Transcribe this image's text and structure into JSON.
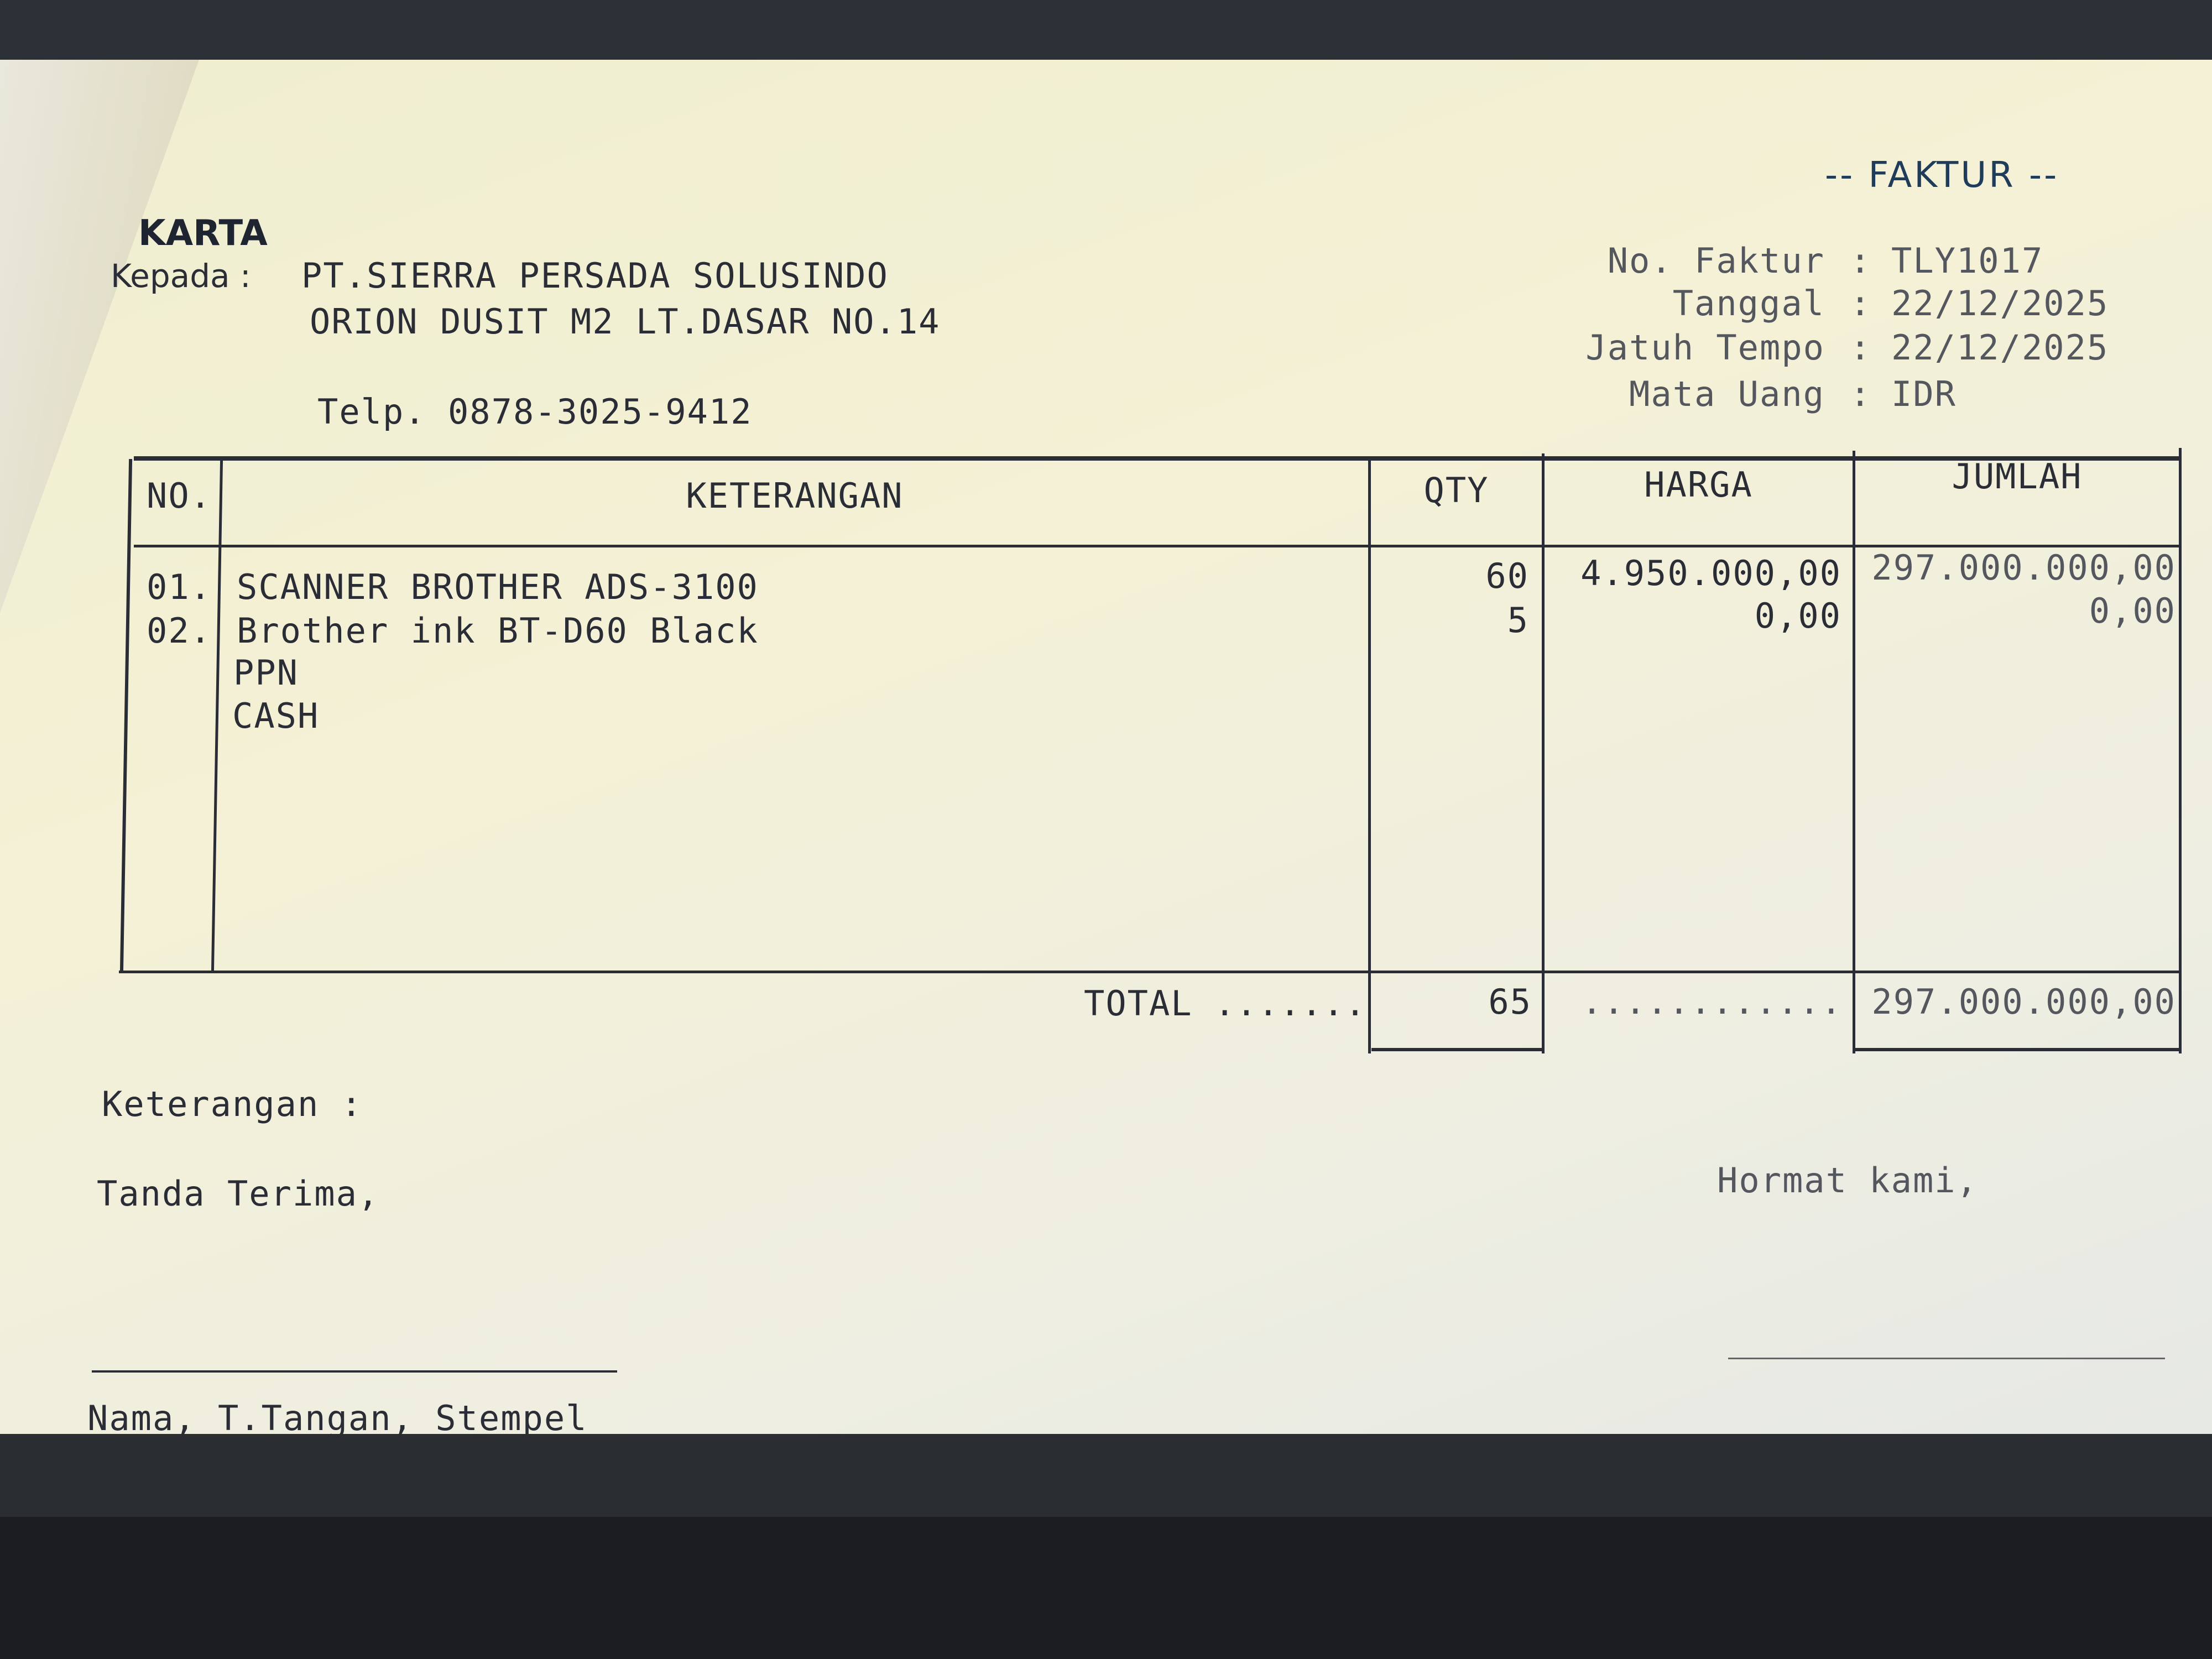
{
  "header": {
    "title": "-- FAKTUR --",
    "company_partial": "KARTA",
    "to_label": "Kepada :",
    "customer_name": "PT.SIERRA PERSADA SOLUSINDO",
    "customer_address": "ORION DUSIT M2 LT.DASAR NO.14",
    "customer_phone": "Telp. 0878-3025-9412"
  },
  "meta": [
    {
      "label": "No. Faktur",
      "value": "TLY1017"
    },
    {
      "label": "Tanggal",
      "value": "22/12/2025"
    },
    {
      "label": "Jatuh Tempo",
      "value": "22/12/2025"
    },
    {
      "label": "Mata Uang",
      "value": "IDR"
    }
  ],
  "table": {
    "columns": [
      "NO.",
      "KETERANGAN",
      "QTY",
      "HARGA",
      "JUMLAH"
    ],
    "rows": [
      {
        "no": "01.",
        "desc": "SCANNER BROTHER ADS-3100",
        "qty": "60",
        "harga": "4.950.000,00",
        "jumlah": "297.000.000,00"
      },
      {
        "no": "02.",
        "desc": "Brother ink BT-D60 Black",
        "qty": "5",
        "harga": "0,00",
        "jumlah": "0,00"
      },
      {
        "no": "",
        "desc": "PPN",
        "qty": "",
        "harga": "",
        "jumlah": ""
      },
      {
        "no": "",
        "desc": "CASH",
        "qty": "",
        "harga": "",
        "jumlah": ""
      }
    ],
    "total_label": "TOTAL .......",
    "total_qty": "65",
    "total_harga_dots": "............",
    "total_jumlah": "297.000.000,00"
  },
  "footer": {
    "notes_label": "Keterangan :",
    "receiver_label": "Tanda Terima,",
    "sender_label": "Hormat kami,",
    "signature_caption": "Nama, T.Tangan, Stempel"
  }
}
